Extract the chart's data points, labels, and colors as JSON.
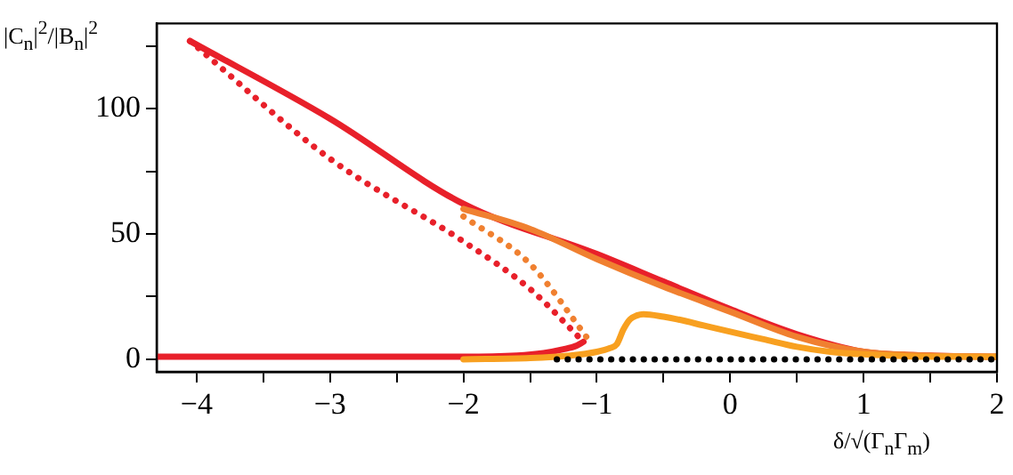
{
  "chart_data": {
    "type": "line",
    "xlabel": "δ/√(Γ$_{n}$Γ$_{m}$)",
    "ylabel": "|C$_{n}$|$^{2}$/|B$_{n}$|$^{2}$",
    "xlim": [
      -4.3,
      2
    ],
    "ylim": [
      -5,
      134
    ],
    "xticks": [
      {
        "value": -4,
        "label": "−4"
      },
      {
        "value": -3.5,
        "label": null
      },
      {
        "value": -3,
        "label": "−3"
      },
      {
        "value": -2.5,
        "label": null
      },
      {
        "value": -2,
        "label": "−2"
      },
      {
        "value": -1.5,
        "label": null
      },
      {
        "value": -1,
        "label": "−1"
      },
      {
        "value": -0.5,
        "label": null
      },
      0,
      {
        "value": 0.5,
        "label": null
      },
      1,
      {
        "value": 1.5,
        "label": null
      },
      2
    ],
    "yticks": [
      0,
      {
        "value": 25,
        "label": null
      },
      50,
      {
        "value": 75,
        "label": null
      },
      100,
      {
        "value": 125,
        "label": null
      }
    ],
    "grid": false,
    "legend": false,
    "marker": "none",
    "series": [
      {
        "color": "#000000",
        "line_style": "dotted",
        "x": [
          -1.3,
          -0.5,
          0,
          0.5,
          1,
          1.5,
          2
        ],
        "values": [
          0,
          0,
          0,
          0,
          0,
          0,
          0
        ]
      },
      {
        "color": "#f8a020",
        "line_style": "solid",
        "x": [
          -2,
          -1.5,
          -1.2,
          -1,
          -0.9,
          -0.85,
          -0.8,
          -0.75,
          -0.7,
          -0.65,
          -0.5,
          -0.4,
          -0.2,
          0,
          0.25,
          0.5,
          0.75,
          1,
          1.5,
          2
        ],
        "values": [
          0,
          0.5,
          1.5,
          3,
          4.5,
          6,
          12,
          16,
          17.5,
          18,
          17,
          16,
          13.5,
          11,
          8,
          5,
          3,
          2,
          1,
          1
        ]
      },
      {
        "color": "#f08030",
        "line_style": "solid",
        "x": [
          -2,
          -1.5,
          -1,
          -0.5,
          0,
          0.5,
          1,
          1.5,
          2
        ],
        "values": [
          60,
          52,
          40,
          29,
          19,
          9,
          3,
          1.5,
          1
        ]
      },
      {
        "color": "#f08030",
        "line_style": "dotted",
        "x": [
          -2,
          -1.5,
          -1.05
        ],
        "values": [
          57,
          38,
          7
        ]
      },
      {
        "color": "#e8202a",
        "line_style": "dotted",
        "x": [
          -4.05,
          -3,
          -2,
          -1.5,
          -1.1
        ],
        "values": [
          127,
          80,
          47,
          28,
          7
        ]
      },
      {
        "color": "#e8202a",
        "line_style": "solid",
        "x": [
          -4.3,
          -3,
          -2,
          -1.6,
          -1.4,
          -1.25,
          -1.15,
          -1.1
        ],
        "values": [
          1,
          1,
          1,
          1.5,
          2.5,
          4,
          5.5,
          7
        ]
      },
      {
        "color": "#e8202a",
        "line_style": "solid",
        "x": [
          -4.05,
          -3,
          -2,
          -1,
          -0.5,
          0,
          0.5,
          1,
          1.5,
          2
        ],
        "values": [
          127,
          96,
          62,
          42,
          31,
          20,
          10,
          3,
          1.5,
          1
        ]
      }
    ]
  }
}
